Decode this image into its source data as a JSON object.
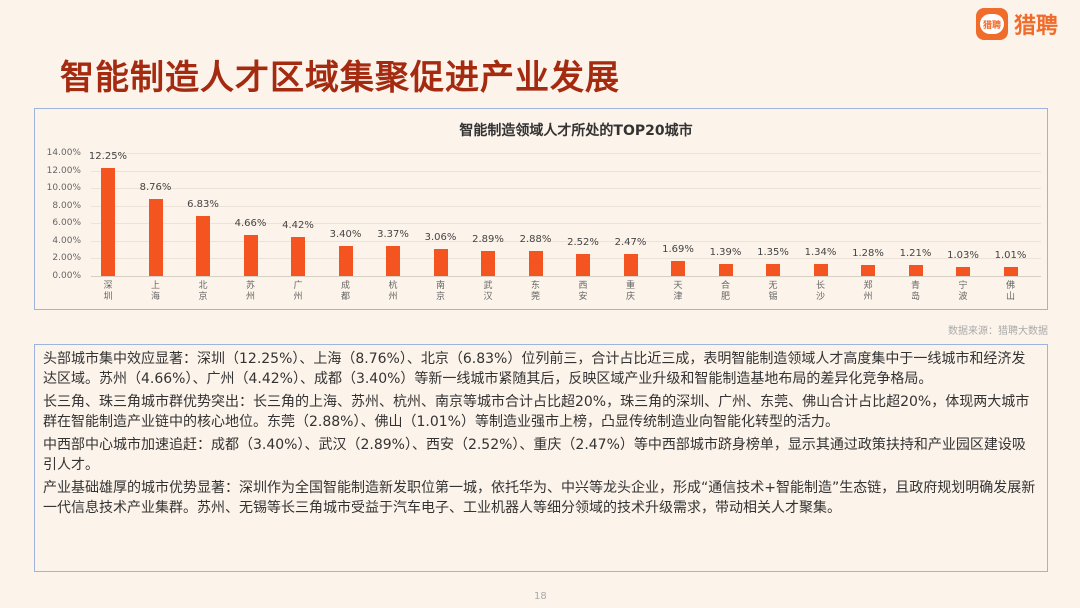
{
  "page": {
    "title": "智能制造人才区域集聚促进产业发展",
    "logo_text": "猎聘",
    "logo_badge": "猎聘",
    "source": "数据来源：猎聘大数据",
    "page_number": "18"
  },
  "paragraphs": [
    "头部城市集中效应显著：深圳（12.25%）、上海（8.76%）、北京（6.83%）位列前三，合计占比近三成，表明智能制造领域人才高度集中于一线城市和经济发达区域。苏州（4.66%）、广州（4.42%）、成都（3.40%）等新一线城市紧随其后，反映区域产业升级和智能制造基地布局的差异化竞争格局。",
    "长三角、珠三角城市群优势突出：长三角的上海、苏州、杭州、南京等城市合计占比超20%，珠三角的深圳、广州、东莞、佛山合计占比超20%，体现两大城市群在智能制造产业链中的核心地位。东莞（2.88%）、佛山（1.01%）等制造业强市上榜，凸显传统制造业向智能化转型的活力。",
    "中西部中心城市加速追赶：成都（3.40%）、武汉（2.89%）、西安（2.52%）、重庆（2.47%）等中西部城市跻身榜单，显示其通过政策扶持和产业园区建设吸引人才。",
    "产业基础雄厚的城市优势显著：深圳作为全国智能制造新发职位第一城，依托华为、中兴等龙头企业，形成“通信技术+智能制造”生态链，且政府规划明确发展新一代信息技术产业集群。苏州、无锡等长三角城市受益于汽车电子、工业机器人等细分领域的技术升级需求，带动相关人才聚集。"
  ],
  "chart_data": {
    "type": "bar",
    "title": "智能制造领域人才所处的TOP20城市",
    "categories": [
      "深圳",
      "上海",
      "北京",
      "苏州",
      "广州",
      "成都",
      "杭州",
      "南京",
      "武汉",
      "东莞",
      "西安",
      "重庆",
      "天津",
      "合肥",
      "无锡",
      "长沙",
      "郑州",
      "青岛",
      "宁波",
      "佛山"
    ],
    "values": [
      12.25,
      8.76,
      6.83,
      4.66,
      4.42,
      3.4,
      3.37,
      3.06,
      2.89,
      2.88,
      2.52,
      2.47,
      1.69,
      1.39,
      1.35,
      1.34,
      1.28,
      1.21,
      1.03,
      1.01
    ],
    "value_labels": [
      "12.25%",
      "8.76%",
      "6.83%",
      "4.66%",
      "4.42%",
      "3.40%",
      "3.37%",
      "3.06%",
      "2.89%",
      "2.88%",
      "2.52%",
      "2.47%",
      "1.69%",
      "1.39%",
      "1.35%",
      "1.34%",
      "1.28%",
      "1.21%",
      "1.03%",
      "1.01%"
    ],
    "y_ticks": [
      "0.00%",
      "2.00%",
      "4.00%",
      "6.00%",
      "8.00%",
      "10.00%",
      "12.00%",
      "14.00%"
    ],
    "ylim": [
      0,
      14
    ],
    "xlabel": "",
    "ylabel": "",
    "grid": true,
    "legend": "none",
    "bar_color": "#f4541f"
  }
}
